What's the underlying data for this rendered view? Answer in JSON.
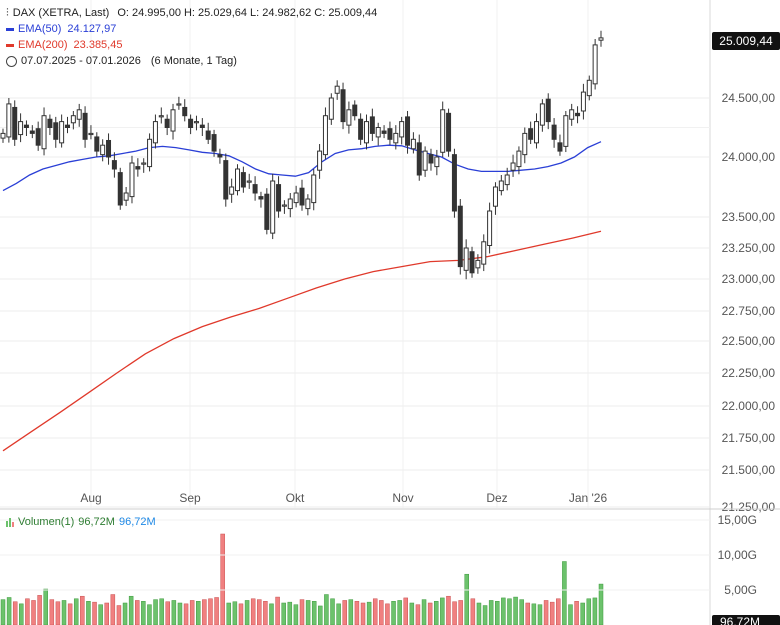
{
  "header": {
    "symbol": "DAX (XETRA, Last)",
    "ohlc": "O: 24.995,00  H: 25.029,64  L: 24.982,62  C: 25.009,44",
    "ema50_label": "EMA(50)",
    "ema50_value": "24.127,97",
    "ema200_label": "EMA(200)",
    "ema200_value": "23.385,45",
    "range_text": "07.07.2025 - 07.01.2026",
    "period_text": "(6 Monate, 1 Tag)"
  },
  "price_tag": "25.009,44",
  "volume_header": {
    "label": "Volumen(1)",
    "value_green": "96,72M",
    "value_blue": "96,72M"
  },
  "volume_tag": "96,72M",
  "colors": {
    "up": "#333333",
    "ema50": "#2a3fd6",
    "ema200": "#e0392b",
    "vol_up": "#6cc26c",
    "vol_down": "#f08080",
    "tag_bg": "#111111"
  },
  "chart_data": {
    "type": "candlestick",
    "title": "DAX (XETRA, Last)",
    "x_range": [
      "07.07.2025",
      "07.01.2026"
    ],
    "x_ticks": [
      "Aug",
      "Sep",
      "Okt",
      "Nov",
      "Dez",
      "Jan '26"
    ],
    "y_ticks": [
      "21.250,00",
      "21.500,00",
      "21.750,00",
      "22.000,00",
      "22.250,00",
      "22.500,00",
      "22.750,00",
      "23.000,00",
      "23.250,00",
      "23.500,00",
      "24.000,00",
      "24.500,00"
    ],
    "ylim": [
      21250,
      25450
    ],
    "close_series": [
      24200,
      24450,
      24150,
      24300,
      24250,
      24200,
      24100,
      24350,
      24250,
      24150,
      24300,
      24250,
      24350,
      24400,
      24150,
      24200,
      24050,
      24100,
      24000,
      23900,
      23600,
      23700,
      23950,
      23900,
      23950,
      24150,
      24300,
      24350,
      24250,
      24400,
      24450,
      24350,
      24250,
      24300,
      24250,
      24150,
      24050,
      24000,
      23650,
      23750,
      23900,
      23750,
      23800,
      23700,
      23650,
      23400,
      23800,
      23550,
      23600,
      23650,
      23700,
      23600,
      23650,
      23850,
      24050,
      24350,
      24500,
      24600,
      24300,
      24400,
      24350,
      24150,
      24300,
      24200,
      24250,
      24200,
      24150,
      24200,
      24300,
      24100,
      24150,
      23850,
      24050,
      23950,
      24000,
      24400,
      24050,
      23550,
      23100,
      23250,
      23050,
      23150,
      23300,
      23550,
      23750,
      23800,
      23850,
      23950,
      24050,
      24200,
      24150,
      24300,
      24450,
      24300,
      24150,
      24050,
      24350,
      24400,
      24350,
      24550,
      24650,
      24950,
      25009.44
    ],
    "ema50": [
      23720,
      23780,
      23850,
      23900,
      23930,
      23960,
      23980,
      24000,
      24010,
      24030,
      24050,
      24080,
      24090,
      24080,
      24060,
      24040,
      24030,
      24010,
      23960,
      23900,
      23860,
      23850,
      23840,
      23870,
      23960,
      24030,
      24060,
      24070,
      24090,
      24100,
      24095,
      24060,
      24030,
      24000,
      23940,
      23900,
      23880,
      23880,
      23880,
      23890,
      23900,
      23920,
      23950,
      24000,
      24080,
      24130
    ],
    "ema50_dates": [
      "07.07",
      "10.07",
      "14.07",
      "17.07",
      "21.07",
      "24.07",
      "28.07",
      "31.07",
      "04.08",
      "07.08",
      "11.08",
      "14.08",
      "18.08",
      "21.08",
      "25.08",
      "28.08",
      "01.09",
      "04.09",
      "08.09",
      "11.09",
      "15.09",
      "18.09",
      "22.09",
      "25.09",
      "29.09",
      "02.10",
      "06.10",
      "09.10",
      "13.10",
      "16.10",
      "20.10",
      "23.10",
      "27.10",
      "30.10",
      "03.11",
      "06.11",
      "10.11",
      "13.11",
      "17.11",
      "20.11",
      "24.11",
      "27.11",
      "01.12",
      "04.12",
      "08.12",
      "07.01"
    ],
    "ema200": [
      21650,
      21800,
      21950,
      22100,
      22250,
      22400,
      22520,
      22620,
      22700,
      22770,
      22850,
      22930,
      23000,
      23060,
      23100,
      23140,
      23150,
      23180,
      23230,
      23280,
      23330,
      23385
    ],
    "volume_values_M": [
      60,
      65,
      55,
      50,
      62,
      58,
      70,
      85,
      60,
      55,
      58,
      50,
      62,
      68,
      56,
      54,
      48,
      52,
      72,
      46,
      52,
      68,
      58,
      56,
      48,
      60,
      62,
      55,
      58,
      52,
      50,
      58,
      56,
      60,
      62,
      65,
      215,
      52,
      55,
      50,
      58,
      62,
      60,
      56,
      50,
      66,
      52,
      54,
      48,
      60,
      58,
      56,
      45,
      72,
      62,
      50,
      58,
      60,
      56,
      52,
      54,
      62,
      58,
      50,
      56,
      58,
      64,
      52,
      48,
      60,
      52,
      56,
      64,
      68,
      55,
      58,
      120,
      62,
      52,
      46,
      58,
      56,
      64,
      62,
      66,
      60,
      52,
      50,
      48,
      58,
      54,
      62,
      150,
      48,
      56,
      52,
      62,
      64,
      96.72
    ],
    "volume_y_ticks": [
      "5,00G",
      "10,00G",
      "15,00G"
    ]
  }
}
